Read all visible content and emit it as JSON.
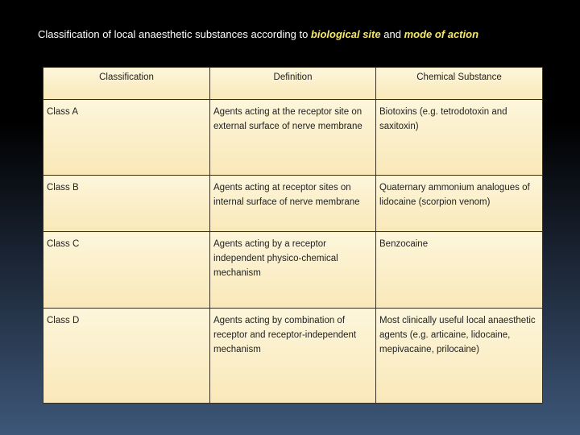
{
  "title": {
    "segments": [
      {
        "text": "Classification of local anaesthetic substances according to",
        "emphasis": false
      },
      {
        "text": "biological site",
        "emphasis": true
      },
      {
        "text": "and",
        "emphasis": false
      },
      {
        "text": "mode of action",
        "emphasis": true
      }
    ]
  },
  "table": {
    "header": [
      "Classification",
      "Definition",
      "Chemical Substance"
    ],
    "rows": [
      [
        "Class A",
        "Agents acting at the receptor site on external surface of nerve membrane",
        "Biotoxins (e.g. tetrodotoxin and saxitoxin)"
      ],
      [
        "Class B",
        "Agents acting at receptor sites on internal surface of nerve membrane",
        "Quaternary ammonium analogues of lidocaine (scorpion venom)"
      ],
      [
        "Class C",
        "Agents acting by a receptor independent physico-chemical mechanism",
        "Benzocaine"
      ],
      [
        "Class D",
        "Agents acting by combination of receptor and receptor-independent mechanism",
        "Most clinically useful local anaesthetic agents (e.g. articaine, lidocaine, mepivacaine, prilocaine)"
      ]
    ]
  }
}
